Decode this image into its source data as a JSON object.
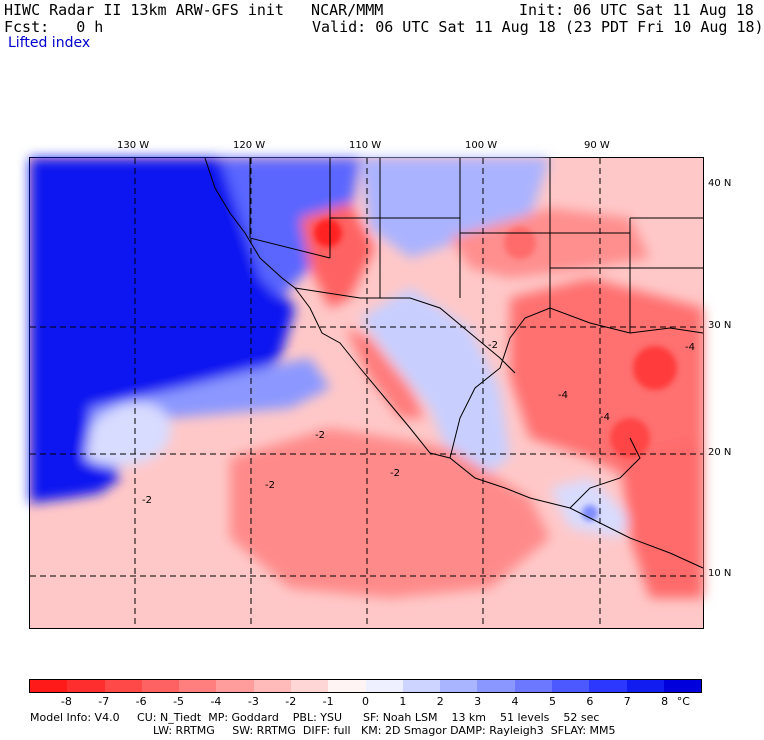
{
  "header": {
    "title_left": "HIWC Radar II 13km ARW-GFS init   NCAR/MMM",
    "init": "Init: 06 UTC Sat 11 Aug 18",
    "fcst": "Fcst:   0 h",
    "valid": "Valid: 06 UTC Sat 11 Aug 18 (23 PDT Fri 10 Aug 18)",
    "field": "Lifted index"
  },
  "map": {
    "lon_labels": [
      "130 W",
      "120 W",
      "110 W",
      "100 W",
      "90 W"
    ],
    "lat_labels": [
      "40 N",
      "30 N",
      "20 N",
      "10 N"
    ],
    "contour_labels": [
      "-2",
      "-2",
      "-2",
      "-2",
      "-4",
      "-4",
      "-4",
      "-2"
    ]
  },
  "colorbar": {
    "labels": [
      "-8",
      "-7",
      "-6",
      "-5",
      "-4",
      "-3",
      "-2",
      "-1",
      "0",
      "1",
      "2",
      "3",
      "4",
      "5",
      "6",
      "7",
      "8",
      "°C"
    ],
    "colors": [
      "#ff1a1a",
      "#ff2e2e",
      "#ff4848",
      "#ff6262",
      "#ff7e7e",
      "#ff9c9c",
      "#ffbaba",
      "#ffd6d6",
      "#fff4f4",
      "#eef0ff",
      "#cdd4ff",
      "#aab5ff",
      "#8a97ff",
      "#6b78ff",
      "#4c59ff",
      "#2d38ff",
      "#101cf0",
      "#0000dd"
    ]
  },
  "footer": {
    "line1": "Model Info: V4.0     CU: N_Tiedt  MP: Goddard    PBL: YSU      SF: Noah LSM    13 km    51 levels    52 sec",
    "line2": "LW: RRTMG     SW: RRTMG  DIFF: full   KM: 2D Smagor DAMP: Rayleigh3  SFLAY: MM5"
  }
}
